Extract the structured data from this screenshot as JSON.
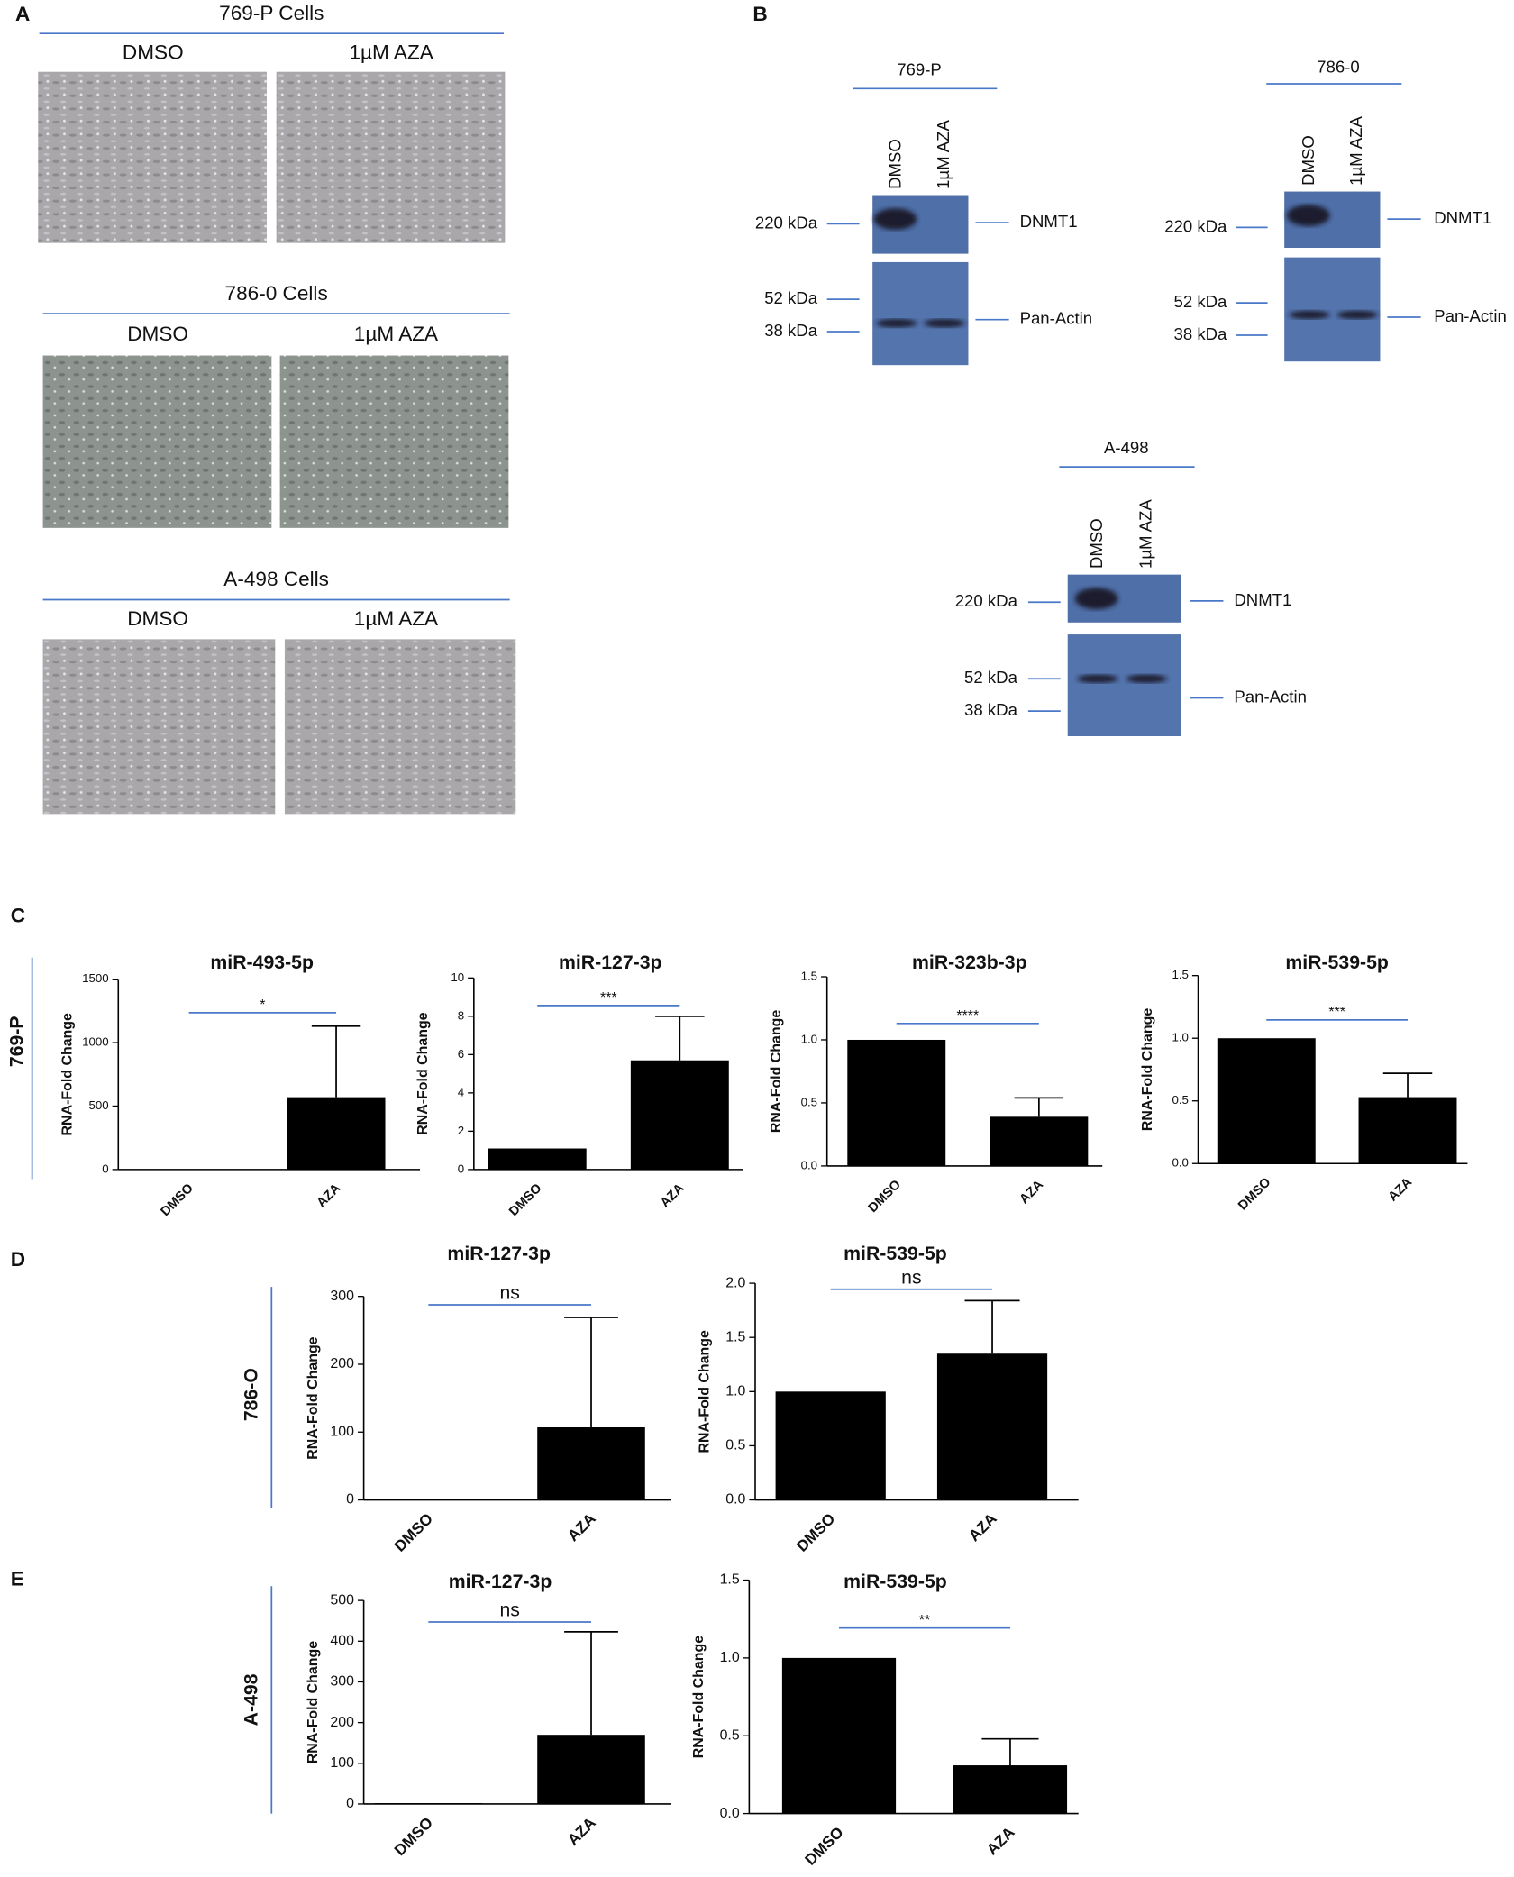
{
  "panel_a": {
    "label": "A",
    "groups": [
      {
        "title": "769-P Cells",
        "conditions": [
          "DMSO",
          "1µM AZA"
        ]
      },
      {
        "title": "786-0 Cells",
        "conditions": [
          "DMSO",
          "1µM AZA"
        ]
      },
      {
        "title": "A-498 Cells",
        "conditions": [
          "DMSO",
          "1µM AZA"
        ]
      }
    ]
  },
  "panel_b": {
    "label": "B",
    "blots": [
      {
        "cell_line": "769-P",
        "lanes": [
          "DMSO",
          "1µM AZA"
        ],
        "markers": [
          "220 kDa",
          "52 kDa",
          "38 kDa"
        ],
        "bands": [
          "DNMT1",
          "Pan-Actin"
        ]
      },
      {
        "cell_line": "786-0",
        "lanes": [
          "DMSO",
          "1µM AZA"
        ],
        "markers": [
          "220 kDa",
          "52 kDa",
          "38 kDa"
        ],
        "bands": [
          "DNMT1",
          "Pan-Actin"
        ]
      },
      {
        "cell_line": "A-498",
        "lanes": [
          "DMSO",
          "1µM AZA"
        ],
        "markers": [
          "220 kDa",
          "52 kDa",
          "38 kDa"
        ],
        "bands": [
          "DNMT1",
          "Pan-Actin"
        ]
      }
    ]
  },
  "chart_panels": [
    {
      "label": "C",
      "row_label": "769-P"
    },
    {
      "label": "D",
      "row_label": "786-O"
    },
    {
      "label": "E",
      "row_label": "A-498"
    }
  ],
  "chart_data": [
    {
      "type": "bar",
      "title": "miR-493-5p",
      "y_label": "RNA-Fold Change",
      "categories": [
        "DMSO",
        "AZA"
      ],
      "values": [
        1,
        570
      ],
      "errors": [
        null,
        560
      ],
      "significance": "*",
      "color": "#000000",
      "ylim": [
        0,
        1500
      ],
      "yticks": [
        0,
        500,
        1000,
        1500
      ]
    },
    {
      "type": "bar",
      "title": "miR-127-3p",
      "y_label": "RNA-Fold Change",
      "categories": [
        "DMSO",
        "AZA"
      ],
      "values": [
        1.1,
        5.7
      ],
      "errors": [
        null,
        2.3
      ],
      "significance": "***",
      "color": "#000000",
      "ylim": [
        0,
        10
      ],
      "yticks": [
        0,
        2,
        4,
        6,
        8,
        10
      ]
    },
    {
      "type": "bar",
      "title": "miR-323b-3p",
      "y_label": "RNA-Fold Change",
      "categories": [
        "DMSO",
        "AZA"
      ],
      "values": [
        1.0,
        0.39
      ],
      "errors": [
        null,
        0.15
      ],
      "significance": "****",
      "color": "#000000",
      "ylim": [
        0,
        1.5
      ],
      "yticks": [
        {
          "value": 0,
          "label": "0.0"
        },
        0.5,
        {
          "value": 1,
          "label": "1.0"
        },
        1.5
      ]
    },
    {
      "type": "bar",
      "title": "miR-539-5p",
      "y_label": "RNA-Fold Change",
      "categories": [
        "DMSO",
        "AZA"
      ],
      "values": [
        1.0,
        0.53
      ],
      "errors": [
        null,
        0.19
      ],
      "significance": "***",
      "color": "#000000",
      "ylim": [
        0,
        1.5
      ],
      "yticks": [
        {
          "value": 0,
          "label": "0.0"
        },
        0.5,
        {
          "value": 1,
          "label": "1.0"
        },
        1.5
      ]
    },
    {
      "type": "bar",
      "title": "miR-127-3p",
      "y_label": "RNA-Fold Change",
      "categories": [
        "DMSO",
        "AZA"
      ],
      "values": [
        1,
        107
      ],
      "errors": [
        null,
        162
      ],
      "significance": "ns",
      "color": "#000000",
      "ylim": [
        0,
        300
      ],
      "yticks": [
        0,
        100,
        200,
        300
      ]
    },
    {
      "type": "bar",
      "title": "miR-539-5p",
      "y_label": "RNA-Fold Change",
      "categories": [
        "DMSO",
        "AZA"
      ],
      "values": [
        1.0,
        1.35
      ],
      "errors": [
        null,
        0.49
      ],
      "significance": "ns",
      "color": "#000000",
      "ylim": [
        0,
        2
      ],
      "yticks": [
        {
          "value": 0,
          "label": "0.0"
        },
        0.5,
        {
          "value": 1,
          "label": "1.0"
        },
        1.5,
        {
          "value": 2,
          "label": "2.0"
        }
      ]
    },
    {
      "type": "bar",
      "title": "miR-127-3p",
      "y_label": "RNA-Fold Change",
      "categories": [
        "DMSO",
        "AZA"
      ],
      "values": [
        2,
        170
      ],
      "errors": [
        null,
        253
      ],
      "significance": "ns",
      "color": "#000000",
      "ylim": [
        0,
        500
      ],
      "yticks": [
        0,
        100,
        200,
        300,
        400,
        500
      ]
    },
    {
      "type": "bar",
      "title": "miR-539-5p",
      "y_label": "RNA-Fold Change",
      "categories": [
        "DMSO",
        "AZA"
      ],
      "values": [
        1.0,
        0.31
      ],
      "errors": [
        null,
        0.17
      ],
      "significance": "**",
      "color": "#000000",
      "ylim": [
        0,
        1.5
      ],
      "yticks": [
        {
          "value": 0,
          "label": "0.0"
        },
        0.5,
        {
          "value": 1,
          "label": "1.0"
        },
        1.5
      ]
    }
  ]
}
